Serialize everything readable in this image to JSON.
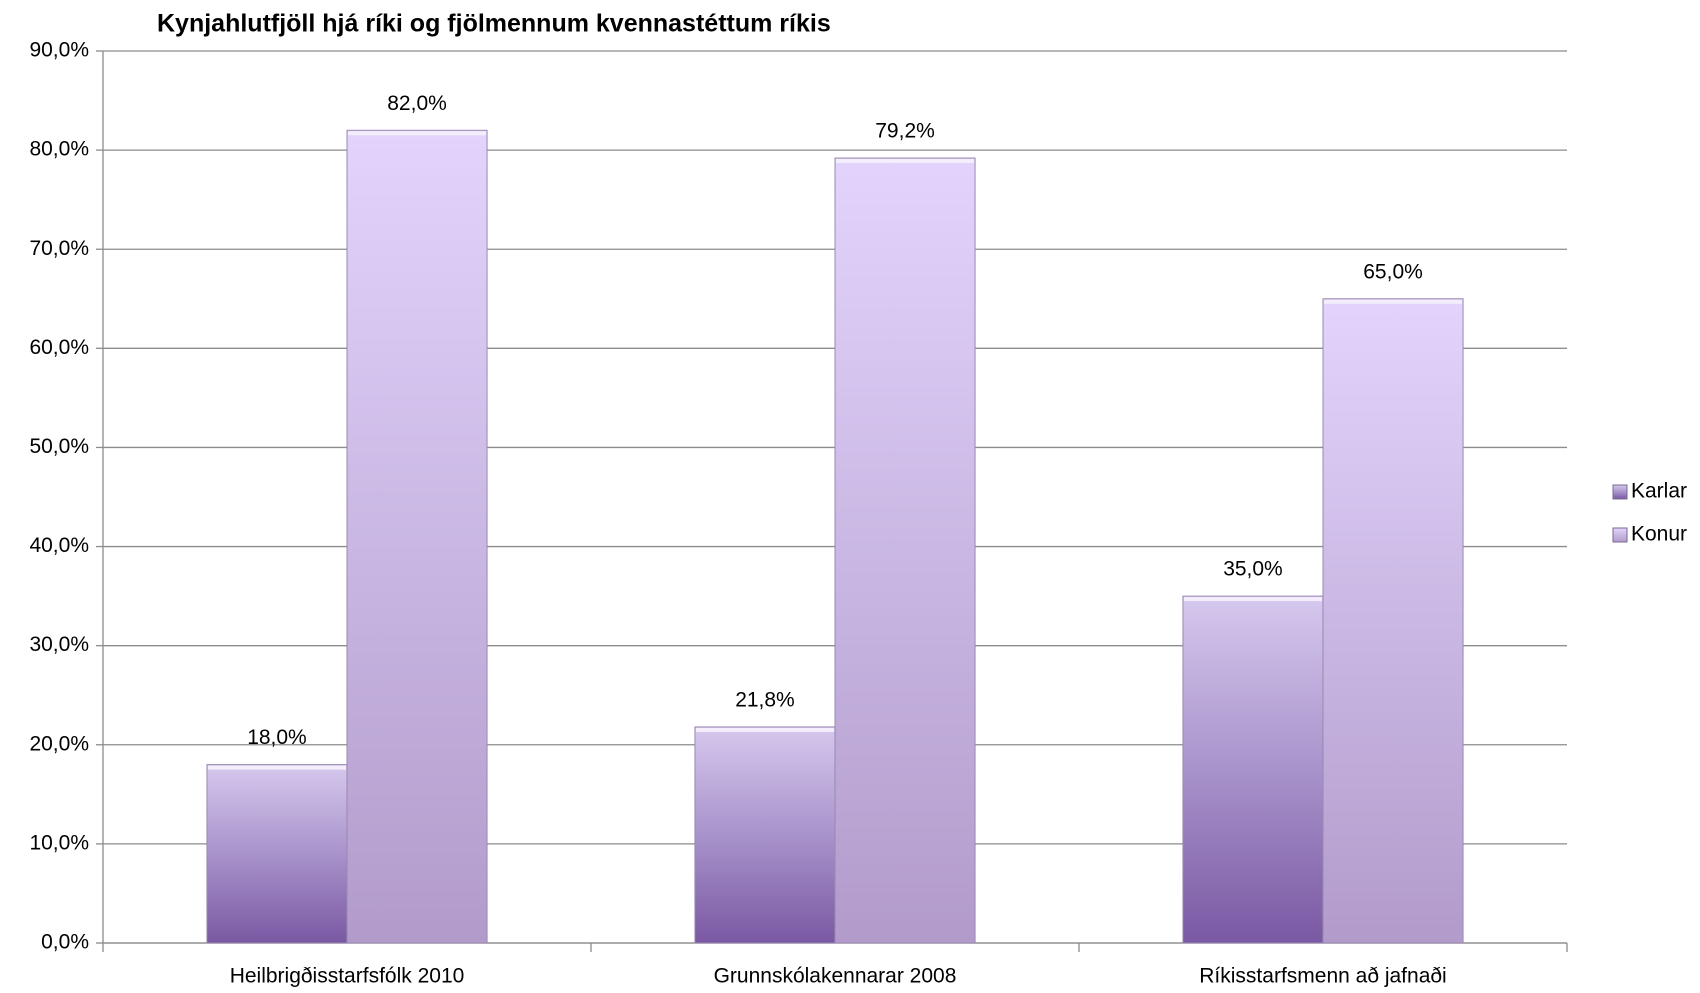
{
  "chart_data": {
    "type": "bar",
    "title": "Kynjahlutfjöll hjá ríki og fjölmennum kvennastéttum ríkis",
    "categories": [
      "Heilbrigðisstarfsfólk 2010",
      "Grunnskólakennarar 2008",
      "Ríkisstarfsmenn að jafnaði"
    ],
    "series": [
      {
        "name": "Karlar",
        "color": "#8a6db5",
        "values": [
          18.0,
          21.8,
          35.0
        ],
        "value_labels": [
          "18,0%",
          "21,8%",
          "35,0%"
        ]
      },
      {
        "name": "Konur",
        "color": "#c9b6e6",
        "values": [
          82.0,
          79.2,
          65.0
        ],
        "value_labels": [
          "82,0%",
          "79,2%",
          "65,0%"
        ]
      }
    ],
    "ylim": [
      0,
      90
    ],
    "yticks": [
      {
        "value": 0,
        "label": "0,0%"
      },
      {
        "value": 10,
        "label": "10,0%"
      },
      {
        "value": 20,
        "label": "20,0%"
      },
      {
        "value": 30,
        "label": "30,0%"
      },
      {
        "value": 40,
        "label": "40,0%"
      },
      {
        "value": 50,
        "label": "50,0%"
      },
      {
        "value": 60,
        "label": "60,0%"
      },
      {
        "value": 70,
        "label": "70,0%"
      },
      {
        "value": 80,
        "label": "80,0%"
      },
      {
        "value": 90,
        "label": "90,0%"
      }
    ],
    "grid": true,
    "legend": "right"
  }
}
